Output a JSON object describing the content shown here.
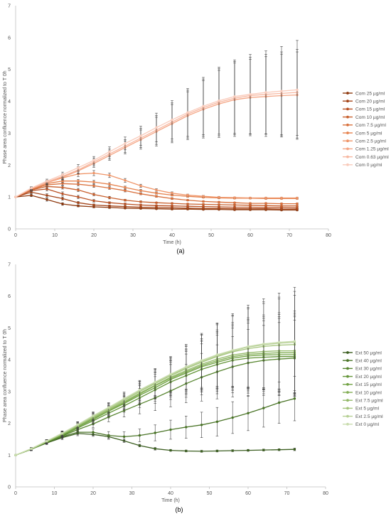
{
  "chart_data": [
    {
      "type": "line",
      "panel_label": "(a)",
      "xlabel": "Time (h)",
      "ylabel": "Phase area confluence normalized to T 0h",
      "xlim": [
        0,
        80
      ],
      "ylim": [
        0,
        7
      ],
      "xticks": [
        0,
        10,
        20,
        30,
        40,
        50,
        60,
        70,
        80
      ],
      "yticks": [
        0,
        1,
        2,
        3,
        4,
        5,
        6,
        7
      ],
      "grid": false,
      "legend": "right",
      "x": [
        0,
        4,
        8,
        12,
        16,
        20,
        24,
        28,
        32,
        36,
        40,
        44,
        48,
        52,
        56,
        60,
        64,
        68,
        72
      ],
      "series": [
        {
          "name": "Com 25 µg/ml",
          "color": "#8f3a10",
          "values": [
            1.0,
            1.05,
            0.92,
            0.78,
            0.72,
            0.69,
            0.67,
            0.65,
            0.64,
            0.63,
            0.62,
            0.62,
            0.61,
            0.61,
            0.6,
            0.6,
            0.6,
            0.59,
            0.59
          ],
          "errors": [
            0,
            0.04,
            0.05,
            0.04,
            0.03,
            0.03,
            0.03,
            0.02,
            0.02,
            0.02,
            0.02,
            0.02,
            0.02,
            0.02,
            0.02,
            0.02,
            0.02,
            0.02,
            0.02
          ]
        },
        {
          "name": "Com 20 µg/ml",
          "color": "#a4451a",
          "values": [
            1.0,
            1.15,
            1.05,
            0.95,
            0.82,
            0.75,
            0.72,
            0.7,
            0.68,
            0.67,
            0.66,
            0.65,
            0.64,
            0.64,
            0.63,
            0.63,
            0.63,
            0.62,
            0.62
          ],
          "errors": [
            0,
            0.04,
            0.05,
            0.05,
            0.04,
            0.03,
            0.03,
            0.02,
            0.02,
            0.02,
            0.02,
            0.02,
            0.02,
            0.02,
            0.02,
            0.02,
            0.02,
            0.02,
            0.02
          ]
        },
        {
          "name": "Com 15 µg/ml",
          "color": "#b84f22",
          "values": [
            1.0,
            1.2,
            1.25,
            1.1,
            1.0,
            0.88,
            0.82,
            0.78,
            0.75,
            0.73,
            0.72,
            0.71,
            0.7,
            0.69,
            0.68,
            0.68,
            0.67,
            0.67,
            0.66
          ],
          "errors": [
            0,
            0.04,
            0.06,
            0.06,
            0.05,
            0.04,
            0.03,
            0.03,
            0.02,
            0.02,
            0.02,
            0.02,
            0.02,
            0.02,
            0.02,
            0.02,
            0.02,
            0.02,
            0.02
          ]
        },
        {
          "name": "Com 10 µg/ml",
          "color": "#c8602e",
          "values": [
            1.0,
            1.22,
            1.33,
            1.3,
            1.22,
            1.08,
            0.98,
            0.9,
            0.85,
            0.82,
            0.8,
            0.78,
            0.77,
            0.76,
            0.75,
            0.74,
            0.73,
            0.72,
            0.72
          ],
          "errors": [
            0,
            0.04,
            0.05,
            0.05,
            0.05,
            0.04,
            0.04,
            0.03,
            0.03,
            0.02,
            0.02,
            0.02,
            0.02,
            0.02,
            0.02,
            0.02,
            0.02,
            0.02,
            0.02
          ]
        },
        {
          "name": "Com 7.5 µg/ml",
          "color": "#d9713e",
          "values": [
            1.0,
            1.24,
            1.38,
            1.42,
            1.4,
            1.35,
            1.28,
            1.2,
            1.1,
            1.02,
            0.95,
            0.9,
            0.86,
            0.84,
            0.82,
            0.8,
            0.8,
            0.79,
            0.79
          ],
          "errors": [
            0,
            0.04,
            0.05,
            0.05,
            0.05,
            0.05,
            0.04,
            0.04,
            0.03,
            0.03,
            0.03,
            0.02,
            0.02,
            0.02,
            0.02,
            0.02,
            0.02,
            0.02,
            0.02
          ]
        },
        {
          "name": "Com 5 µg/ml",
          "color": "#e6834f",
          "values": [
            1.0,
            1.25,
            1.42,
            1.5,
            1.5,
            1.47,
            1.4,
            1.3,
            1.2,
            1.12,
            1.06,
            1.02,
            0.99,
            0.97,
            0.96,
            0.96,
            0.95,
            0.95,
            0.95
          ],
          "errors": [
            0,
            0.04,
            0.05,
            0.05,
            0.05,
            0.05,
            0.05,
            0.04,
            0.04,
            0.03,
            0.03,
            0.03,
            0.02,
            0.02,
            0.02,
            0.02,
            0.02,
            0.02,
            0.02
          ]
        },
        {
          "name": "Com 2.5 µg/ml",
          "color": "#ef9467",
          "values": [
            1.0,
            1.26,
            1.45,
            1.6,
            1.72,
            1.75,
            1.68,
            1.52,
            1.35,
            1.22,
            1.12,
            1.06,
            1.02,
            0.99,
            0.98,
            0.97,
            0.97,
            0.97,
            0.97
          ],
          "errors": [
            0,
            0.04,
            0.06,
            0.07,
            0.08,
            0.08,
            0.07,
            0.06,
            0.05,
            0.04,
            0.04,
            0.03,
            0.03,
            0.03,
            0.02,
            0.02,
            0.02,
            0.02,
            0.02
          ]
        },
        {
          "name": "Com 1.25 µg/ml",
          "color": "#f4a584",
          "values": [
            1.0,
            1.26,
            1.45,
            1.62,
            1.82,
            2.05,
            2.3,
            2.55,
            2.8,
            3.05,
            3.3,
            3.55,
            3.75,
            3.92,
            4.05,
            4.12,
            4.15,
            4.18,
            4.2
          ],
          "errors": [
            0,
            0.04,
            0.06,
            0.08,
            0.1,
            0.12,
            0.15,
            0.2,
            0.3,
            0.45,
            0.6,
            0.75,
            0.9,
            1.05,
            1.15,
            1.2,
            1.25,
            1.3,
            1.35
          ]
        },
        {
          "name": "Com 0.63 µg/ml",
          "color": "#f7b7a0",
          "values": [
            1.0,
            1.27,
            1.47,
            1.65,
            1.85,
            2.1,
            2.35,
            2.6,
            2.85,
            3.1,
            3.35,
            3.6,
            3.8,
            3.97,
            4.1,
            4.18,
            4.22,
            4.25,
            4.28
          ],
          "errors": [
            0,
            0.04,
            0.06,
            0.08,
            0.1,
            0.12,
            0.15,
            0.2,
            0.3,
            0.45,
            0.6,
            0.75,
            0.9,
            1.05,
            1.15,
            1.2,
            1.25,
            1.3,
            1.35
          ]
        },
        {
          "name": "Com 0 µg/ml",
          "color": "#f9cbbb",
          "values": [
            1.0,
            1.28,
            1.5,
            1.7,
            1.92,
            2.15,
            2.42,
            2.68,
            2.92,
            3.18,
            3.42,
            3.65,
            3.85,
            4.02,
            4.15,
            4.22,
            4.28,
            4.32,
            4.36
          ],
          "errors": [
            0,
            0.04,
            0.06,
            0.08,
            0.1,
            0.12,
            0.15,
            0.2,
            0.3,
            0.45,
            0.6,
            0.75,
            0.9,
            1.05,
            1.15,
            1.25,
            1.3,
            1.4,
            1.55
          ]
        }
      ]
    },
    {
      "type": "line",
      "panel_label": "(b)",
      "xlabel": "Time (h)",
      "ylabel": "Phase area confluence normalized to T 0h",
      "xlim": [
        0,
        80
      ],
      "ylim": [
        0,
        7
      ],
      "xticks": [
        0,
        10,
        20,
        30,
        40,
        50,
        60,
        70,
        80
      ],
      "yticks": [
        0,
        1,
        2,
        3,
        4,
        5,
        6,
        7
      ],
      "grid": false,
      "legend": "right",
      "x": [
        0,
        4,
        8,
        12,
        16,
        20,
        24,
        28,
        32,
        36,
        40,
        44,
        48,
        52,
        56,
        60,
        64,
        68,
        72
      ],
      "series": [
        {
          "name": "Ext 50 µg/ml",
          "color": "#3b5e20",
          "values": [
            1.0,
            1.18,
            1.38,
            1.55,
            1.68,
            1.65,
            1.58,
            1.45,
            1.3,
            1.2,
            1.15,
            1.13,
            1.12,
            1.13,
            1.14,
            1.15,
            1.16,
            1.17,
            1.18
          ],
          "errors": [
            0,
            0.04,
            0.05,
            0.06,
            0.07,
            0.06,
            0.06,
            0.05,
            0.04,
            0.04,
            0.03,
            0.03,
            0.03,
            0.03,
            0.03,
            0.03,
            0.03,
            0.03,
            0.04
          ]
        },
        {
          "name": "Ext 40 µg/ml",
          "color": "#4a7427",
          "values": [
            1.0,
            1.18,
            1.4,
            1.58,
            1.72,
            1.72,
            1.62,
            1.58,
            1.62,
            1.7,
            1.8,
            1.88,
            1.95,
            2.05,
            2.18,
            2.32,
            2.48,
            2.65,
            2.78
          ],
          "errors": [
            0,
            0.04,
            0.05,
            0.06,
            0.07,
            0.1,
            0.12,
            0.15,
            0.2,
            0.25,
            0.3,
            0.35,
            0.4,
            0.45,
            0.5,
            0.55,
            0.6,
            0.65,
            0.7
          ]
        },
        {
          "name": "Ext 30 µg/ml",
          "color": "#57852f",
          "values": [
            1.0,
            1.18,
            1.4,
            1.6,
            1.8,
            1.98,
            2.2,
            2.4,
            2.6,
            2.8,
            3.02,
            3.25,
            3.45,
            3.62,
            3.78,
            3.9,
            3.98,
            4.02,
            4.05
          ],
          "errors": [
            0,
            0.04,
            0.05,
            0.07,
            0.09,
            0.12,
            0.15,
            0.2,
            0.3,
            0.4,
            0.5,
            0.6,
            0.75,
            0.85,
            0.95,
            1.05,
            1.1,
            1.15,
            1.2
          ]
        },
        {
          "name": "Ext 20 µg/ml",
          "color": "#649539",
          "values": [
            1.0,
            1.18,
            1.41,
            1.62,
            1.85,
            2.08,
            2.32,
            2.55,
            2.8,
            3.05,
            3.3,
            3.5,
            3.7,
            3.85,
            3.98,
            4.05,
            4.08,
            4.1,
            4.1
          ],
          "errors": [
            0,
            0.04,
            0.05,
            0.07,
            0.09,
            0.12,
            0.15,
            0.2,
            0.3,
            0.42,
            0.55,
            0.68,
            0.8,
            0.92,
            1.02,
            1.1,
            1.15,
            1.2,
            1.25
          ]
        },
        {
          "name": "Ext 15 µg/ml",
          "color": "#71a244",
          "values": [
            1.0,
            1.19,
            1.42,
            1.64,
            1.88,
            2.12,
            2.38,
            2.62,
            2.88,
            3.12,
            3.38,
            3.58,
            3.78,
            3.92,
            4.05,
            4.12,
            4.15,
            4.16,
            4.16
          ],
          "errors": [
            0,
            0.04,
            0.05,
            0.07,
            0.09,
            0.12,
            0.15,
            0.2,
            0.3,
            0.42,
            0.55,
            0.68,
            0.8,
            0.92,
            1.02,
            1.1,
            1.15,
            1.2,
            1.25
          ]
        },
        {
          "name": "Ext 10 µg/ml",
          "color": "#82ae55",
          "values": [
            1.0,
            1.19,
            1.42,
            1.65,
            1.9,
            2.15,
            2.4,
            2.65,
            2.92,
            3.18,
            3.42,
            3.62,
            3.82,
            3.97,
            4.1,
            4.17,
            4.2,
            4.22,
            4.22
          ],
          "errors": [
            0,
            0.04,
            0.05,
            0.07,
            0.09,
            0.12,
            0.15,
            0.2,
            0.3,
            0.42,
            0.55,
            0.68,
            0.8,
            0.92,
            1.02,
            1.1,
            1.15,
            1.2,
            1.25
          ]
        },
        {
          "name": "Ext 7.5 µg/ml",
          "color": "#93b968",
          "values": [
            1.0,
            1.19,
            1.43,
            1.66,
            1.92,
            2.18,
            2.42,
            2.68,
            2.95,
            3.2,
            3.45,
            3.66,
            3.86,
            4.02,
            4.15,
            4.22,
            4.26,
            4.28,
            4.28
          ],
          "errors": [
            0,
            0.04,
            0.05,
            0.07,
            0.09,
            0.12,
            0.15,
            0.2,
            0.3,
            0.42,
            0.55,
            0.68,
            0.8,
            0.92,
            1.02,
            1.1,
            1.15,
            1.2,
            1.25
          ]
        },
        {
          "name": "Ext 5 µg/ml",
          "color": "#a5c47d",
          "values": [
            1.0,
            1.19,
            1.43,
            1.67,
            1.93,
            2.2,
            2.45,
            2.72,
            3.0,
            3.25,
            3.5,
            3.72,
            3.92,
            4.1,
            4.25,
            4.35,
            4.42,
            4.46,
            4.48
          ],
          "errors": [
            0,
            0.04,
            0.05,
            0.07,
            0.09,
            0.12,
            0.15,
            0.2,
            0.3,
            0.42,
            0.55,
            0.7,
            0.85,
            1.0,
            1.12,
            1.25,
            1.35,
            1.45,
            1.55
          ]
        },
        {
          "name": "Ext 2.5 µg/ml",
          "color": "#b6d094",
          "values": [
            1.0,
            1.2,
            1.44,
            1.68,
            1.95,
            2.22,
            2.48,
            2.75,
            3.02,
            3.28,
            3.52,
            3.75,
            3.95,
            4.13,
            4.28,
            4.4,
            4.47,
            4.52,
            4.55
          ],
          "errors": [
            0,
            0.04,
            0.05,
            0.07,
            0.09,
            0.12,
            0.15,
            0.2,
            0.3,
            0.42,
            0.55,
            0.7,
            0.85,
            1.0,
            1.12,
            1.25,
            1.35,
            1.45,
            1.6
          ]
        },
        {
          "name": "Ext 0 µg/ml",
          "color": "#c9dcae",
          "values": [
            1.0,
            1.2,
            1.44,
            1.69,
            1.96,
            2.24,
            2.5,
            2.78,
            3.05,
            3.3,
            3.55,
            3.78,
            3.98,
            4.16,
            4.3,
            4.42,
            4.5,
            4.55,
            4.58
          ],
          "errors": [
            0,
            0.04,
            0.05,
            0.07,
            0.09,
            0.12,
            0.15,
            0.2,
            0.3,
            0.42,
            0.55,
            0.7,
            0.85,
            1.0,
            1.15,
            1.3,
            1.42,
            1.55,
            1.7
          ]
        }
      ]
    }
  ]
}
